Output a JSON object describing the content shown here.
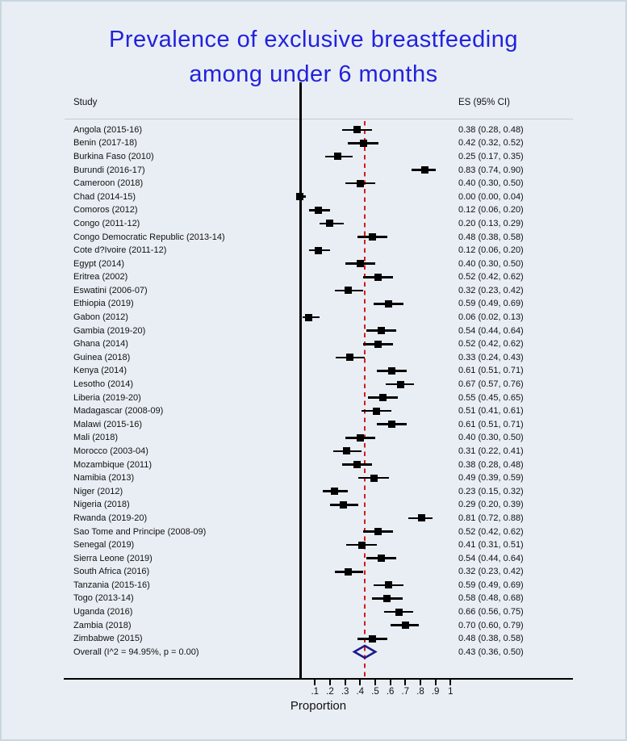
{
  "chart_data": {
    "type": "forest",
    "title_lines": [
      "Prevalence of exclusive breastfeeding",
      "among under 6 months"
    ],
    "columns": {
      "study": "Study",
      "es": "ES (95% CI)"
    },
    "xlabel": "Proportion",
    "xlim": [
      0,
      1
    ],
    "x_ticks": [
      {
        "v": 0.1,
        "label": ".1"
      },
      {
        "v": 0.2,
        "label": ".2"
      },
      {
        "v": 0.3,
        "label": ".3"
      },
      {
        "v": 0.4,
        "label": ".4"
      },
      {
        "v": 0.5,
        "label": ".5"
      },
      {
        "v": 0.6,
        "label": ".6"
      },
      {
        "v": 0.7,
        "label": ".7"
      },
      {
        "v": 0.8,
        "label": ".8"
      },
      {
        "v": 0.9,
        "label": ".9"
      },
      {
        "v": 1.0,
        "label": "1"
      }
    ],
    "zero_line_value": 0,
    "reference_line": {
      "value": 0.43,
      "style": "dashed"
    },
    "studies": [
      {
        "label": "Angola (2015-16)",
        "es": 0.38,
        "lo": 0.28,
        "hi": 0.48,
        "es_text": "0.38 (0.28, 0.48)"
      },
      {
        "label": "Benin (2017-18)",
        "es": 0.42,
        "lo": 0.32,
        "hi": 0.52,
        "es_text": "0.42 (0.32, 0.52)"
      },
      {
        "label": "Burkina Faso (2010)",
        "es": 0.25,
        "lo": 0.17,
        "hi": 0.35,
        "es_text": "0.25 (0.17, 0.35)"
      },
      {
        "label": "Burundi (2016-17)",
        "es": 0.83,
        "lo": 0.74,
        "hi": 0.9,
        "es_text": "0.83 (0.74, 0.90)"
      },
      {
        "label": "Cameroon (2018)",
        "es": 0.4,
        "lo": 0.3,
        "hi": 0.5,
        "es_text": "0.40 (0.30, 0.50)"
      },
      {
        "label": "Chad (2014-15)",
        "es": 0.0,
        "lo": 0.0,
        "hi": 0.04,
        "es_text": "0.00 (0.00, 0.04)"
      },
      {
        "label": "Comoros (2012)",
        "es": 0.12,
        "lo": 0.06,
        "hi": 0.2,
        "es_text": "0.12 (0.06, 0.20)"
      },
      {
        "label": "Congo (2011-12)",
        "es": 0.2,
        "lo": 0.13,
        "hi": 0.29,
        "es_text": "0.20 (0.13, 0.29)"
      },
      {
        "label": "Congo Democratic Republic (2013-14)",
        "es": 0.48,
        "lo": 0.38,
        "hi": 0.58,
        "es_text": "0.48 (0.38, 0.58)"
      },
      {
        "label": "Cote d?Ivoire (2011-12)",
        "es": 0.12,
        "lo": 0.06,
        "hi": 0.2,
        "es_text": "0.12 (0.06, 0.20)"
      },
      {
        "label": "Egypt (2014)",
        "es": 0.4,
        "lo": 0.3,
        "hi": 0.5,
        "es_text": "0.40 (0.30, 0.50)"
      },
      {
        "label": "Eritrea (2002)",
        "es": 0.52,
        "lo": 0.42,
        "hi": 0.62,
        "es_text": "0.52 (0.42, 0.62)"
      },
      {
        "label": "Eswatini (2006-07)",
        "es": 0.32,
        "lo": 0.23,
        "hi": 0.42,
        "es_text": "0.32 (0.23, 0.42)"
      },
      {
        "label": "Ethiopia (2019)",
        "es": 0.59,
        "lo": 0.49,
        "hi": 0.69,
        "es_text": "0.59 (0.49, 0.69)"
      },
      {
        "label": "Gabon (2012)",
        "es": 0.06,
        "lo": 0.02,
        "hi": 0.13,
        "es_text": "0.06 (0.02, 0.13)"
      },
      {
        "label": "Gambia (2019-20)",
        "es": 0.54,
        "lo": 0.44,
        "hi": 0.64,
        "es_text": "0.54 (0.44, 0.64)"
      },
      {
        "label": "Ghana (2014)",
        "es": 0.52,
        "lo": 0.42,
        "hi": 0.62,
        "es_text": "0.52 (0.42, 0.62)"
      },
      {
        "label": "Guinea (2018)",
        "es": 0.33,
        "lo": 0.24,
        "hi": 0.43,
        "es_text": "0.33 (0.24, 0.43)"
      },
      {
        "label": "Kenya (2014)",
        "es": 0.61,
        "lo": 0.51,
        "hi": 0.71,
        "es_text": "0.61 (0.51, 0.71)"
      },
      {
        "label": "Lesotho (2014)",
        "es": 0.67,
        "lo": 0.57,
        "hi": 0.76,
        "es_text": "0.67 (0.57, 0.76)"
      },
      {
        "label": "Liberia (2019-20)",
        "es": 0.55,
        "lo": 0.45,
        "hi": 0.65,
        "es_text": "0.55 (0.45, 0.65)"
      },
      {
        "label": "Madagascar (2008-09)",
        "es": 0.51,
        "lo": 0.41,
        "hi": 0.61,
        "es_text": "0.51 (0.41, 0.61)"
      },
      {
        "label": "Malawi (2015-16)",
        "es": 0.61,
        "lo": 0.51,
        "hi": 0.71,
        "es_text": "0.61 (0.51, 0.71)"
      },
      {
        "label": "Mali (2018)",
        "es": 0.4,
        "lo": 0.3,
        "hi": 0.5,
        "es_text": "0.40 (0.30, 0.50)"
      },
      {
        "label": "Morocco (2003-04)",
        "es": 0.31,
        "lo": 0.22,
        "hi": 0.41,
        "es_text": "0.31 (0.22, 0.41)"
      },
      {
        "label": "Mozambique (2011)",
        "es": 0.38,
        "lo": 0.28,
        "hi": 0.48,
        "es_text": "0.38 (0.28, 0.48)"
      },
      {
        "label": "Namibia (2013)",
        "es": 0.49,
        "lo": 0.39,
        "hi": 0.59,
        "es_text": "0.49 (0.39, 0.59)"
      },
      {
        "label": "Niger (2012)",
        "es": 0.23,
        "lo": 0.15,
        "hi": 0.32,
        "es_text": "0.23 (0.15, 0.32)"
      },
      {
        "label": "Nigeria (2018)",
        "es": 0.29,
        "lo": 0.2,
        "hi": 0.39,
        "es_text": "0.29 (0.20, 0.39)"
      },
      {
        "label": "Rwanda (2019-20)",
        "es": 0.81,
        "lo": 0.72,
        "hi": 0.88,
        "es_text": "0.81 (0.72, 0.88)"
      },
      {
        "label": "Sao Tome and Principe (2008-09)",
        "es": 0.52,
        "lo": 0.42,
        "hi": 0.62,
        "es_text": "0.52 (0.42, 0.62)"
      },
      {
        "label": "Senegal (2019)",
        "es": 0.41,
        "lo": 0.31,
        "hi": 0.51,
        "es_text": "0.41 (0.31, 0.51)"
      },
      {
        "label": "Sierra Leone (2019)",
        "es": 0.54,
        "lo": 0.44,
        "hi": 0.64,
        "es_text": "0.54 (0.44, 0.64)"
      },
      {
        "label": "South Africa (2016)",
        "es": 0.32,
        "lo": 0.23,
        "hi": 0.42,
        "es_text": "0.32 (0.23, 0.42)"
      },
      {
        "label": "Tanzania (2015-16)",
        "es": 0.59,
        "lo": 0.49,
        "hi": 0.69,
        "es_text": "0.59 (0.49, 0.69)"
      },
      {
        "label": "Togo (2013-14)",
        "es": 0.58,
        "lo": 0.48,
        "hi": 0.68,
        "es_text": "0.58 (0.48, 0.68)"
      },
      {
        "label": "Uganda (2016)",
        "es": 0.66,
        "lo": 0.56,
        "hi": 0.75,
        "es_text": "0.66 (0.56, 0.75)"
      },
      {
        "label": "Zambia (2018)",
        "es": 0.7,
        "lo": 0.6,
        "hi": 0.79,
        "es_text": "0.70 (0.60, 0.79)"
      },
      {
        "label": "Zimbabwe (2015)",
        "es": 0.48,
        "lo": 0.38,
        "hi": 0.58,
        "es_text": "0.48 (0.38, 0.58)"
      }
    ],
    "overall": {
      "label": "Overall (I^2 = 94.95%, p = 0.00)",
      "es": 0.43,
      "lo": 0.36,
      "hi": 0.5,
      "es_text": "0.43 (0.36, 0.50)"
    },
    "colors": {
      "title": "#2222dd",
      "marker": "#000000",
      "ci_line": "#000000",
      "overall_diamond": "#1b1b8c",
      "reference_line": "#d31b1b",
      "background": "#e9eef4",
      "header_rule": "#c6ccd2"
    }
  }
}
